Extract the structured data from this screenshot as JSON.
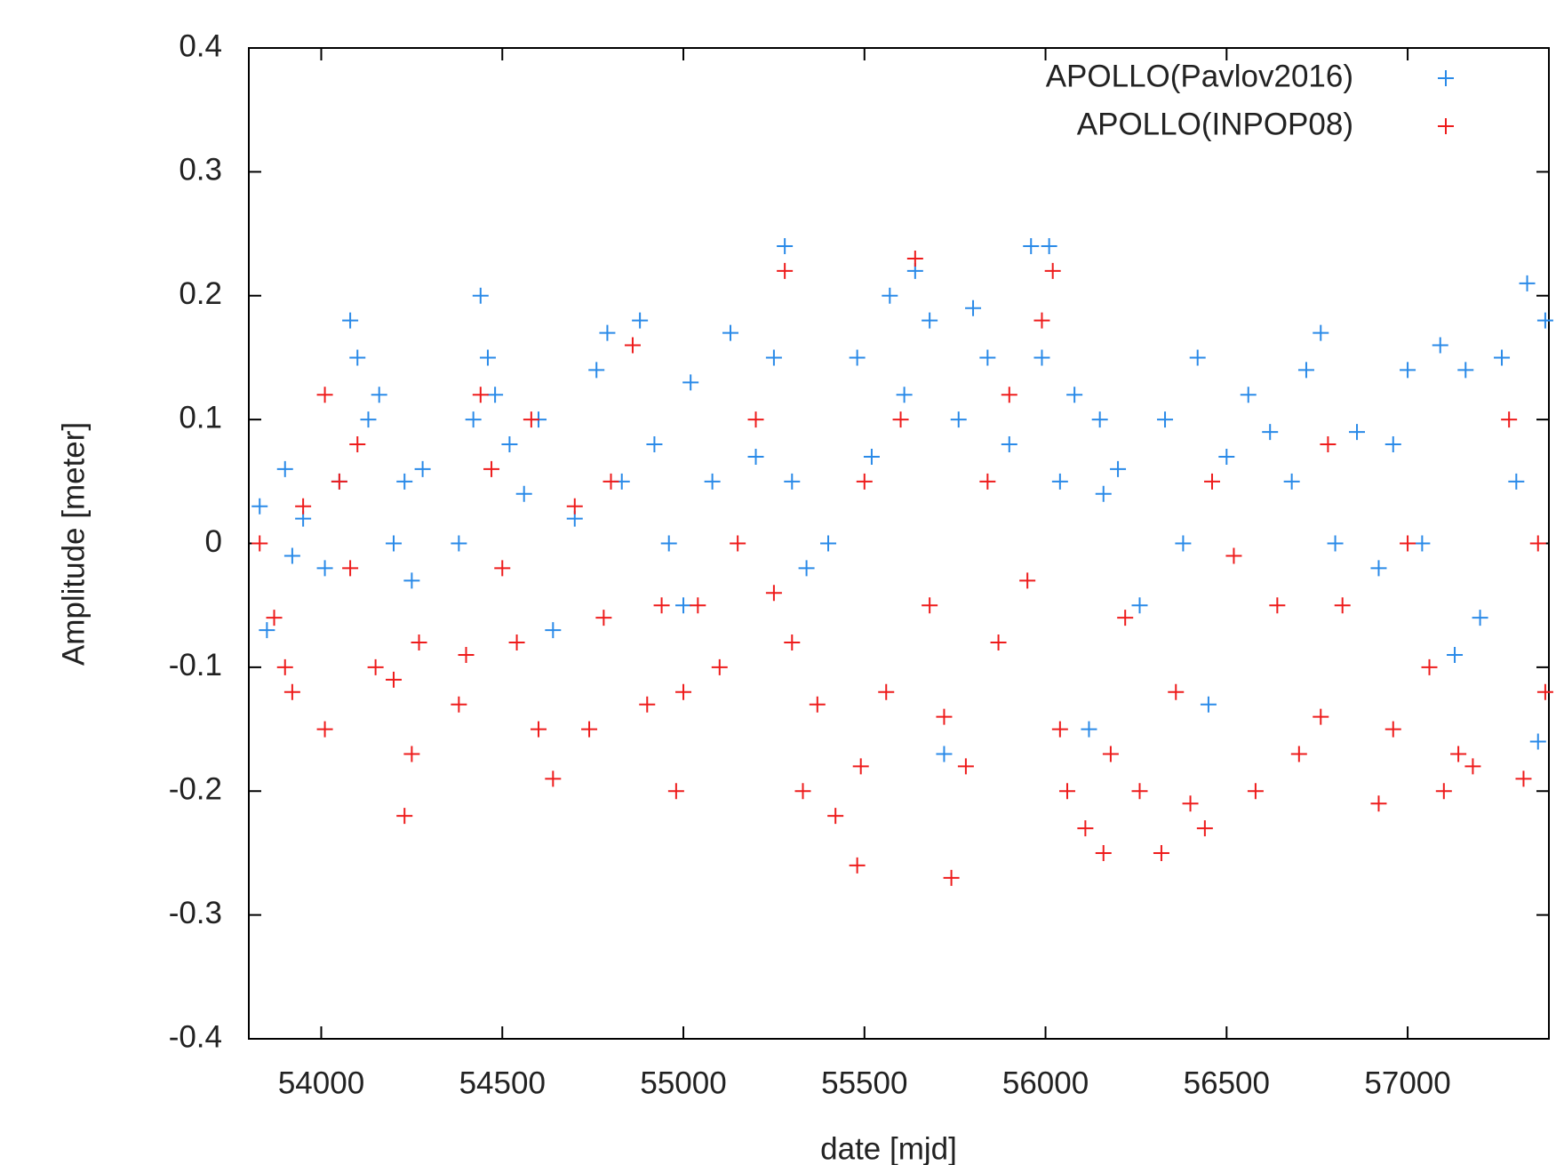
{
  "chart_data": {
    "type": "scatter",
    "xlabel": "date [mjd]",
    "ylabel": "Amplitude [meter]",
    "xlim": [
      53800,
      57390
    ],
    "xticks": [
      54000,
      54500,
      55000,
      55500,
      56000,
      56500,
      57000
    ],
    "ylim": [
      -0.4,
      0.4
    ],
    "yticks": [
      -0.4,
      -0.3,
      -0.2,
      -0.1,
      0,
      0.1,
      0.2,
      0.3,
      0.4
    ],
    "legend": "top right",
    "series": [
      {
        "name": "APOLLO(Pavlov2016)",
        "color": "#2a8ae8",
        "x": [
          53830,
          53850,
          53900,
          53920,
          53950,
          54010,
          54050,
          54080,
          54100,
          54130,
          54160,
          54200,
          54230,
          54250,
          54280,
          54380,
          54420,
          54440,
          54460,
          54480,
          54520,
          54560,
          54600,
          54640,
          54700,
          54760,
          54790,
          54830,
          54880,
          54920,
          54960,
          55000,
          55020,
          55080,
          55130,
          55200,
          55250,
          55280,
          55300,
          55340,
          55400,
          55480,
          55520,
          55570,
          55610,
          55640,
          55680,
          55720,
          55760,
          55800,
          55840,
          55900,
          55960,
          55990,
          56010,
          56040,
          56080,
          56120,
          56150,
          56160,
          56200,
          56260,
          56330,
          56380,
          56420,
          56450,
          56500,
          56560,
          56620,
          56680,
          56720,
          56760,
          56800,
          56860,
          56920,
          56960,
          57000,
          57040,
          57090,
          57130,
          57160,
          57200,
          57260,
          57300,
          57330,
          57360,
          57380
        ],
        "values": [
          0.03,
          -0.07,
          0.06,
          -0.01,
          0.02,
          -0.02,
          0.05,
          0.18,
          0.15,
          0.1,
          0.12,
          0.0,
          0.05,
          -0.03,
          0.06,
          0.0,
          0.1,
          0.2,
          0.15,
          0.12,
          0.08,
          0.04,
          0.1,
          -0.07,
          0.02,
          0.14,
          0.17,
          0.05,
          0.18,
          0.08,
          0.0,
          -0.05,
          0.13,
          0.05,
          0.17,
          0.07,
          0.15,
          0.24,
          0.05,
          -0.02,
          0.0,
          0.15,
          0.07,
          0.2,
          0.12,
          0.22,
          0.18,
          -0.17,
          0.1,
          0.19,
          0.15,
          0.08,
          0.24,
          0.15,
          0.24,
          0.05,
          0.12,
          -0.15,
          0.1,
          0.04,
          0.06,
          -0.05,
          0.1,
          0.0,
          0.15,
          -0.13,
          0.07,
          0.12,
          0.09,
          0.05,
          0.14,
          0.17,
          0.0,
          0.09,
          -0.02,
          0.08,
          0.14,
          0.0,
          0.16,
          -0.09,
          0.14,
          -0.06,
          0.15,
          0.05,
          0.21,
          -0.16,
          0.18
        ]
      },
      {
        "name": "APOLLO(INPOP08)",
        "color": "#ee1c1c",
        "x": [
          53830,
          53870,
          53900,
          53920,
          53950,
          54010,
          54010,
          54050,
          54080,
          54100,
          54150,
          54200,
          54230,
          54250,
          54270,
          54380,
          54400,
          54440,
          54470,
          54500,
          54540,
          54580,
          54600,
          54640,
          54700,
          54740,
          54780,
          54800,
          54860,
          54900,
          54940,
          54980,
          55000,
          55040,
          55100,
          55150,
          55200,
          55250,
          55280,
          55300,
          55330,
          55370,
          55420,
          55480,
          55490,
          55500,
          55560,
          55600,
          55640,
          55680,
          55720,
          55740,
          55780,
          55840,
          55870,
          55900,
          55950,
          55990,
          56020,
          56040,
          56060,
          56110,
          56160,
          56180,
          56220,
          56260,
          56320,
          56360,
          56400,
          56440,
          56460,
          56520,
          56580,
          56640,
          56700,
          56760,
          56780,
          56820,
          56920,
          56960,
          57000,
          57060,
          57100,
          57140,
          57180,
          57280,
          57320,
          57360,
          57380
        ],
        "values": [
          0.0,
          -0.06,
          -0.1,
          -0.12,
          0.03,
          -0.15,
          0.12,
          0.05,
          -0.02,
          0.08,
          -0.1,
          -0.11,
          -0.22,
          -0.17,
          -0.08,
          -0.13,
          -0.09,
          0.12,
          0.06,
          -0.02,
          -0.08,
          0.1,
          -0.15,
          -0.19,
          0.03,
          -0.15,
          -0.06,
          0.05,
          0.16,
          -0.13,
          -0.05,
          -0.2,
          -0.12,
          -0.05,
          -0.1,
          0.0,
          0.1,
          -0.04,
          0.22,
          -0.08,
          -0.2,
          -0.13,
          -0.22,
          -0.26,
          -0.18,
          0.05,
          -0.12,
          0.1,
          0.23,
          -0.05,
          -0.14,
          -0.27,
          -0.18,
          0.05,
          -0.08,
          0.12,
          -0.03,
          0.18,
          0.22,
          -0.15,
          -0.2,
          -0.23,
          -0.25,
          -0.17,
          -0.06,
          -0.2,
          -0.25,
          -0.12,
          -0.21,
          -0.23,
          0.05,
          -0.01,
          -0.2,
          -0.05,
          -0.17,
          -0.14,
          0.08,
          -0.05,
          -0.21,
          -0.15,
          0.0,
          -0.1,
          -0.2,
          -0.17,
          -0.18,
          0.1,
          -0.19,
          0.0,
          -0.12
        ]
      }
    ]
  }
}
